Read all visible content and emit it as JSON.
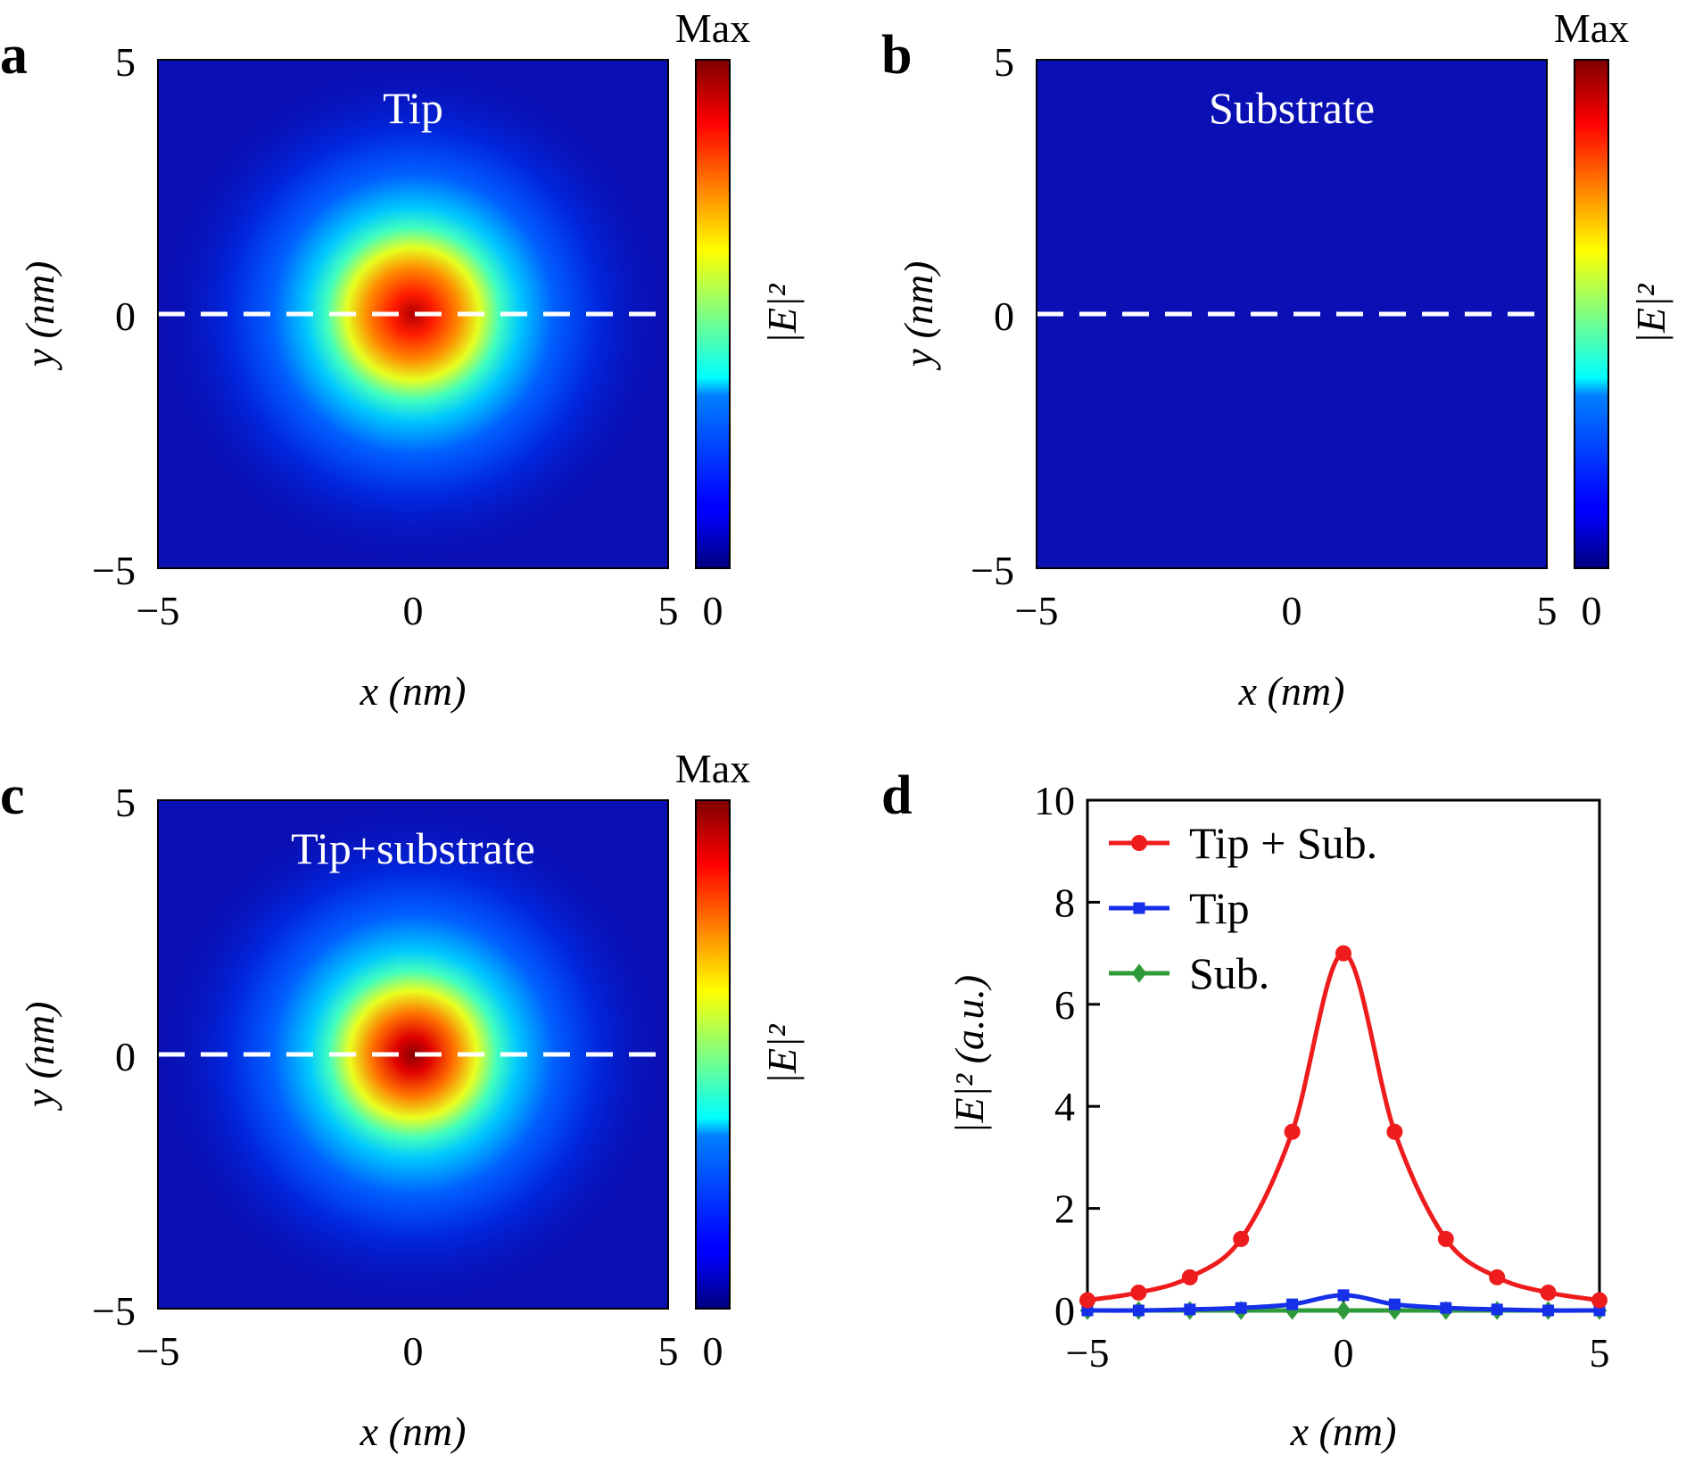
{
  "panels": [
    {
      "letter": "a",
      "title": "Tip",
      "xlabel": "x (nm)",
      "ylabel": "y (nm)",
      "colorbar_max": "Max",
      "colorbar_min": "0",
      "colorbar_label": "|E|²",
      "x_ticks": [
        "−5",
        "0",
        "5"
      ],
      "y_ticks": [
        "5",
        "0",
        "−5"
      ]
    },
    {
      "letter": "b",
      "title": "Substrate",
      "xlabel": "x (nm)",
      "ylabel": "y (nm)",
      "colorbar_max": "Max",
      "colorbar_min": "0",
      "colorbar_label": "|E|²",
      "x_ticks": [
        "−5",
        "0",
        "5"
      ],
      "y_ticks": [
        "5",
        "0",
        "−5"
      ]
    },
    {
      "letter": "c",
      "title": "Tip+substrate",
      "xlabel": "x (nm)",
      "ylabel": "y (nm)",
      "colorbar_max": "Max",
      "colorbar_min": "0",
      "colorbar_label": "|E|²",
      "x_ticks": [
        "−5",
        "0",
        "5"
      ],
      "y_ticks": [
        "5",
        "0",
        "−5"
      ]
    },
    {
      "letter": "d"
    }
  ],
  "colors": {
    "background_blue": "#0a10b4",
    "tip_sub": "#ee1c1c",
    "tip": "#1530e8",
    "sub": "#2f9a3a",
    "dashed_line": "#ffffff"
  },
  "chart_data": [
    {
      "type": "heatmap",
      "panel": "a",
      "title": "Tip",
      "xlabel": "x (nm)",
      "ylabel": "y (nm)",
      "xlim": [
        -5,
        5
      ],
      "ylim": [
        -5,
        5
      ],
      "peak": {
        "x": 0,
        "y": 0
      },
      "colorbar": {
        "min_label": "0",
        "max_label": "Max",
        "label": "|E|²"
      },
      "dashed_line_y": 0
    },
    {
      "type": "heatmap",
      "panel": "b",
      "title": "Substrate",
      "xlabel": "x (nm)",
      "ylabel": "y (nm)",
      "xlim": [
        -5,
        5
      ],
      "ylim": [
        -5,
        5
      ],
      "colorbar": {
        "min_label": "0",
        "max_label": "Max",
        "label": "|E|²"
      },
      "dashed_line_y": 0
    },
    {
      "type": "heatmap",
      "panel": "c",
      "title": "Tip+substrate",
      "xlabel": "x (nm)",
      "ylabel": "y (nm)",
      "xlim": [
        -5,
        5
      ],
      "ylim": [
        -5,
        5
      ],
      "peak": {
        "x": 0,
        "y": 0
      },
      "colorbar": {
        "min_label": "0",
        "max_label": "Max",
        "label": "|E|²"
      },
      "dashed_line_y": 0
    },
    {
      "type": "line",
      "panel": "d",
      "xlabel": "x (nm)",
      "ylabel": "|E|² (a.u.)",
      "xlim": [
        -5,
        5
      ],
      "ylim": [
        0,
        10
      ],
      "x_ticks": [
        -5,
        0,
        5
      ],
      "x_tick_labels": [
        "−5",
        "0",
        "5"
      ],
      "y_ticks": [
        0,
        2,
        4,
        6,
        8,
        10
      ],
      "y_tick_labels": [
        "0",
        "2",
        "4",
        "6",
        "8",
        "10"
      ],
      "legend_position": "top-left",
      "x": [
        -5,
        -4,
        -3,
        -2,
        -1,
        0,
        1,
        2,
        3,
        4,
        5
      ],
      "series": [
        {
          "name": "Tip + Sub.",
          "marker": "circle",
          "color": "#ee1c1c",
          "values": [
            0.2,
            0.35,
            0.65,
            1.4,
            3.5,
            7.0,
            3.5,
            1.4,
            0.65,
            0.35,
            0.2
          ]
        },
        {
          "name": "Tip",
          "marker": "square",
          "color": "#1530e8",
          "values": [
            0.0,
            0.0,
            0.02,
            0.05,
            0.12,
            0.3,
            0.12,
            0.05,
            0.02,
            0.0,
            0.0
          ]
        },
        {
          "name": "Sub.",
          "marker": "diamond",
          "color": "#2f9a3a",
          "values": [
            0,
            0,
            0,
            0,
            0,
            0,
            0,
            0,
            0,
            0,
            0
          ]
        }
      ]
    }
  ]
}
